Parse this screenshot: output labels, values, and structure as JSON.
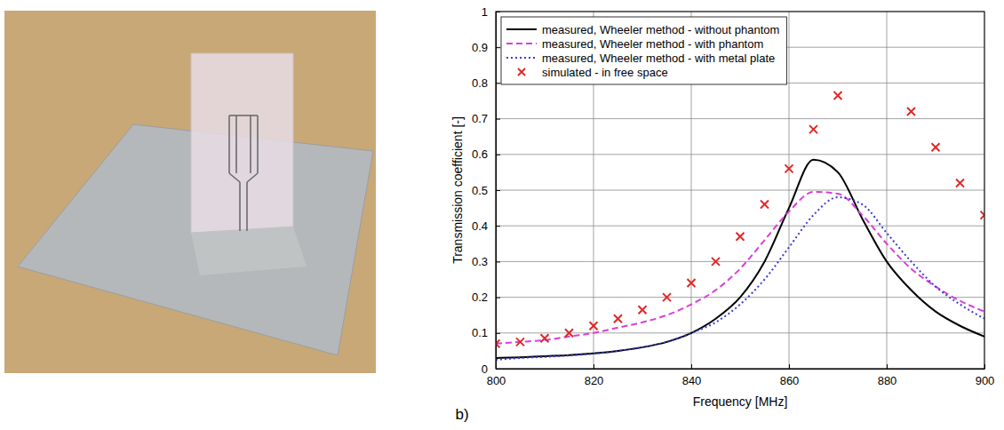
{
  "chart_data": {
    "type": "line",
    "x_label": "Frequency [MHz]",
    "y_label": "Transmission coefficient [-]",
    "panel_label": "b)",
    "x": [
      800,
      805,
      810,
      815,
      820,
      825,
      830,
      835,
      840,
      845,
      850,
      855,
      860,
      865,
      870,
      875,
      880,
      885,
      890,
      895,
      900
    ],
    "xlim": [
      800,
      900
    ],
    "ylim": [
      0,
      1
    ],
    "xticks": [
      800,
      820,
      840,
      860,
      880,
      900
    ],
    "yticks": [
      0,
      0.1,
      0.2,
      0.3,
      0.4,
      0.5,
      0.6,
      0.7,
      0.8,
      0.9,
      1
    ],
    "grid": true,
    "legend": "upper left",
    "series": [
      {
        "name": "measured, Wheeler method - without phantom",
        "color": "#000000",
        "type": "line",
        "line_style": "solid",
        "values": [
          0.03,
          0.032,
          0.035,
          0.038,
          0.043,
          0.05,
          0.06,
          0.075,
          0.1,
          0.14,
          0.2,
          0.3,
          0.45,
          0.585,
          0.55,
          0.42,
          0.3,
          0.22,
          0.16,
          0.12,
          0.09
        ]
      },
      {
        "name": "measured, Wheeler method - with phantom",
        "color": "#d93fd9",
        "type": "line",
        "line_style": "dashed",
        "values": [
          0.07,
          0.075,
          0.08,
          0.09,
          0.1,
          0.115,
          0.13,
          0.15,
          0.18,
          0.22,
          0.28,
          0.36,
          0.44,
          0.495,
          0.49,
          0.43,
          0.35,
          0.28,
          0.23,
          0.19,
          0.16
        ]
      },
      {
        "name": "measured, Wheeler method - with metal plate",
        "color": "#3a3ad6",
        "type": "line",
        "line_style": "dotted",
        "values": [
          0.025,
          0.03,
          0.033,
          0.037,
          0.042,
          0.05,
          0.06,
          0.075,
          0.1,
          0.13,
          0.18,
          0.25,
          0.34,
          0.43,
          0.48,
          0.46,
          0.38,
          0.3,
          0.23,
          0.18,
          0.14
        ]
      },
      {
        "name": "simulated - in free space",
        "color": "#e02828",
        "type": "scatter",
        "marker": "x",
        "values": [
          0.07,
          0.075,
          0.085,
          0.1,
          0.12,
          0.14,
          0.165,
          0.2,
          0.24,
          0.3,
          0.37,
          0.46,
          0.56,
          0.67,
          0.765,
          null,
          null,
          0.72,
          0.62,
          0.52,
          0.43
        ]
      }
    ]
  }
}
